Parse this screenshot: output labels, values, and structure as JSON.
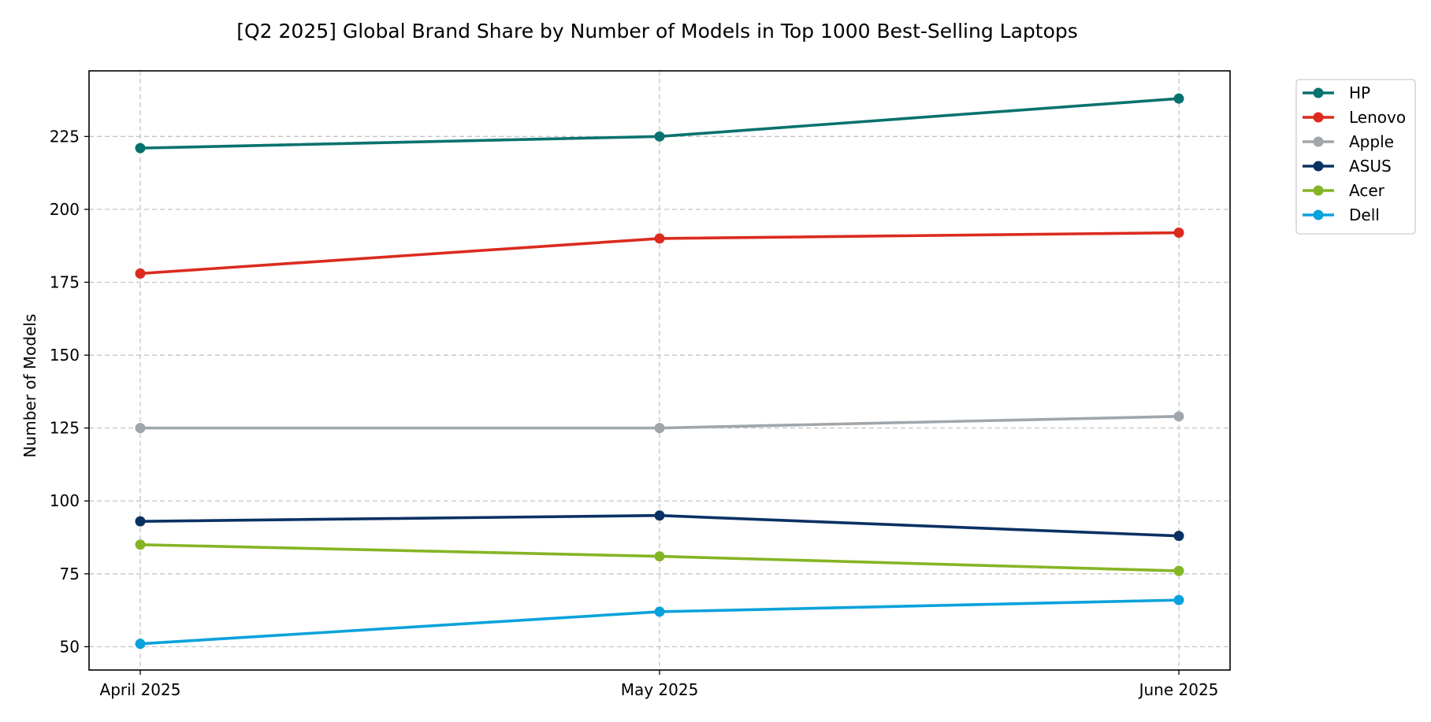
{
  "chart_data": {
    "type": "line",
    "title": "[Q2 2025] Global Brand Share by Number of Models in Top 1000 Best-Selling Laptops",
    "xlabel": "",
    "ylabel": "Number of Models",
    "categories": [
      "April 2025",
      "May 2025",
      "June 2025"
    ],
    "ylim": [
      42,
      247.5
    ],
    "yticks": [
      50,
      75,
      100,
      125,
      150,
      175,
      200,
      225
    ],
    "grid": true,
    "legend_position": "outside-top-right",
    "series": [
      {
        "name": "HP",
        "values": [
          221,
          225,
          238
        ],
        "color": "#08726e"
      },
      {
        "name": "Lenovo",
        "values": [
          178,
          190,
          192
        ],
        "color": "#dc2a1f"
      },
      {
        "name": "Apple",
        "values": [
          125,
          125,
          129
        ],
        "color": "#a0a6aa"
      },
      {
        "name": "ASUS",
        "values": [
          93,
          95,
          88
        ],
        "color": "#0a3163"
      },
      {
        "name": "Acer",
        "values": [
          85,
          81,
          76
        ],
        "color": "#84b524"
      },
      {
        "name": "Dell",
        "values": [
          51,
          62,
          66
        ],
        "color": "#0aa2dc"
      }
    ]
  }
}
